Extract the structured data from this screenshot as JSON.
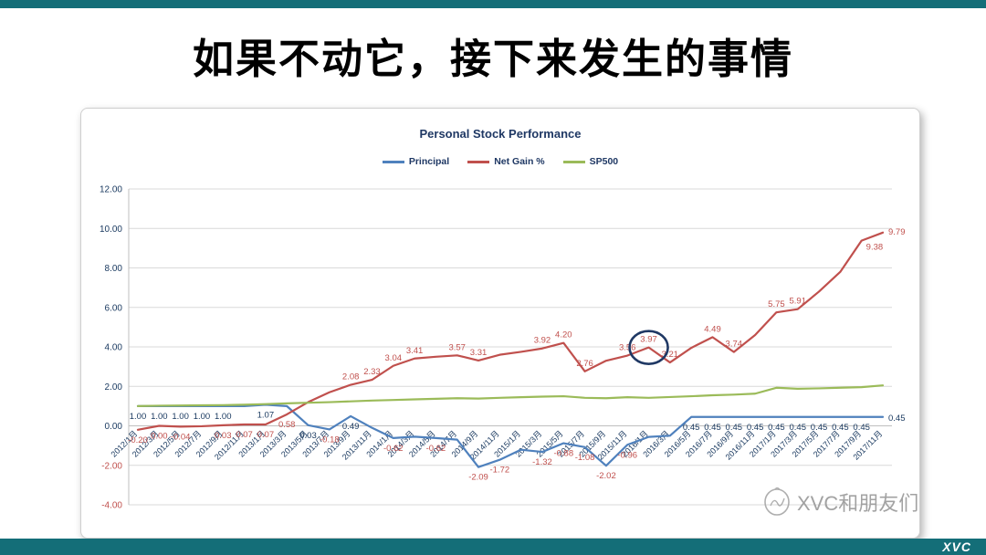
{
  "slide": {
    "title": "如果不动它，接下来发生的事情",
    "watermark": "XVC和朋友们",
    "footer_logo": "XVC",
    "accent_color": "#146E78"
  },
  "chart_data": {
    "type": "line",
    "title": "Personal Stock Performance",
    "legend_position": "top",
    "grid": true,
    "ylim": [
      -4,
      12
    ],
    "yticks": [
      12,
      10,
      8,
      6,
      4,
      2,
      0,
      -2,
      -4
    ],
    "ytick_labels": [
      "12.00",
      "10.00",
      "8.00",
      "6.00",
      "4.00",
      "2.00",
      "0.00",
      "-2.00",
      "-4.00"
    ],
    "colors": {
      "positive_label": "#17375E",
      "negative_label": "#C0504D",
      "grid": "#D9D9D9",
      "annotation": "#1F3864"
    },
    "categories": [
      "2012/1月",
      "2012/3月",
      "2012/5月",
      "2012/7月",
      "2012/9月",
      "2012/11月",
      "2013/1月",
      "2013/3月",
      "2013/5月",
      "2013/7月",
      "2013/9月",
      "2013/11月",
      "2014/1月",
      "2014/3月",
      "2014/5月",
      "2014/7月",
      "2014/9月",
      "2014/11月",
      "2015/1月",
      "2015/3月",
      "2015/5月",
      "2015/7月",
      "2015/9月",
      "2015/11月",
      "2016/1月",
      "2016/3月",
      "2016/5月",
      "2016/7月",
      "2016/9月",
      "2016/11月",
      "2017/1月",
      "2017/3月",
      "2017/5月",
      "2017/7月",
      "2017/9月",
      "2017/11月"
    ],
    "series": [
      {
        "name": "Principal",
        "color": "#4F81BD",
        "values": [
          1.0,
          1.0,
          1.0,
          1.0,
          1.0,
          1.0,
          1.07,
          1.0,
          0.03,
          -0.18,
          0.49,
          -0.1,
          -0.62,
          -0.55,
          -0.62,
          -0.7,
          -2.09,
          -1.72,
          -1.21,
          -1.32,
          -0.88,
          -1.08,
          -2.02,
          -0.96,
          -0.56,
          -0.5,
          0.45,
          0.45,
          0.45,
          0.45,
          0.45,
          0.45,
          0.45,
          0.45,
          0.45,
          0.45
        ],
        "labels": [
          "1.00",
          "1.00",
          "1.00",
          "1.00",
          "1.00",
          null,
          "1.07",
          null,
          "0.03",
          "-0.18",
          "0.49",
          null,
          "-0.62",
          null,
          "-0.62",
          null,
          "-2.09",
          "-1.72",
          null,
          "-1.32",
          "-0.88",
          "-1.08",
          "-2.02",
          "-0.96",
          null,
          null,
          "0.45",
          "0.45",
          "0.45",
          "0.45",
          "0.45",
          "0.45",
          "0.45",
          "0.45",
          "0.45",
          "0.45"
        ]
      },
      {
        "name": "Net Gain %",
        "color": "#C0504D",
        "values": [
          -0.2,
          0.0,
          -0.04,
          -0.02,
          0.03,
          0.07,
          0.07,
          0.58,
          1.2,
          1.7,
          2.08,
          2.33,
          3.04,
          3.41,
          3.5,
          3.57,
          3.31,
          3.6,
          3.75,
          3.92,
          4.2,
          2.76,
          3.3,
          3.56,
          3.97,
          3.21,
          3.95,
          4.49,
          3.74,
          4.6,
          5.75,
          5.91,
          6.8,
          7.8,
          9.38,
          9.79
        ],
        "labels": [
          "-0.20",
          "0.00",
          "-0.04",
          null,
          "0.03",
          "0.07",
          "0.07",
          "0.58",
          null,
          null,
          "2.08",
          "2.33",
          "3.04",
          "3.41",
          null,
          "3.57",
          "3.31",
          null,
          null,
          "3.92",
          "4.20",
          "2.76",
          null,
          "3.56",
          "3.97",
          "3.21",
          null,
          "4.49",
          "3.74",
          null,
          "5.75",
          "5.91",
          null,
          null,
          "9.38",
          "9.79"
        ]
      },
      {
        "name": "SP500",
        "color": "#9BBB59",
        "values": [
          1.0,
          1.02,
          1.03,
          1.04,
          1.05,
          1.07,
          1.1,
          1.14,
          1.17,
          1.2,
          1.24,
          1.28,
          1.31,
          1.34,
          1.37,
          1.4,
          1.38,
          1.42,
          1.45,
          1.48,
          1.5,
          1.42,
          1.4,
          1.45,
          1.42,
          1.46,
          1.5,
          1.55,
          1.58,
          1.63,
          1.93,
          1.88,
          1.9,
          1.93,
          1.96,
          2.05
        ],
        "labels": null
      }
    ],
    "annotation": {
      "type": "circle",
      "series": "Net Gain %",
      "index": 24,
      "category": "2016/1月",
      "value_label": "3.97"
    }
  }
}
